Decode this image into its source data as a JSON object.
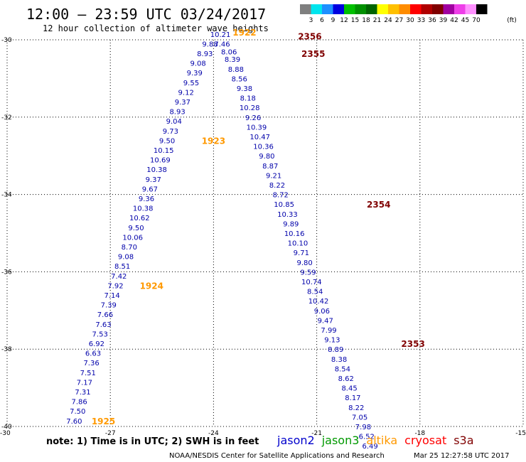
{
  "title": "12:00 – 23:59 UTC 03/24/2017",
  "subtitle": "12 hour collection of altimeter wave heights",
  "footer_note": "note: 1) Time is in UTC; 2) SWH is in feet",
  "footer_credit": "NOAA/NESDIS Center for Satellite Applications and Research",
  "footer_timestamp": "Mar 25 12:27:58 UTC 2017",
  "legend": {
    "unit": "(ft)",
    "bins": [
      {
        "label": "3",
        "color": "#7f7f7f"
      },
      {
        "label": "6",
        "color": "#00e5ee"
      },
      {
        "label": "9",
        "color": "#1e90ff"
      },
      {
        "label": "12",
        "color": "#0000e0"
      },
      {
        "label": "15",
        "color": "#00c000"
      },
      {
        "label": "18",
        "color": "#009000"
      },
      {
        "label": "21",
        "color": "#006400"
      },
      {
        "label": "24",
        "color": "#ffff00"
      },
      {
        "label": "27",
        "color": "#ffc000"
      },
      {
        "label": "30",
        "color": "#ff8c00"
      },
      {
        "label": "33",
        "color": "#ff0000"
      },
      {
        "label": "36",
        "color": "#b00000"
      },
      {
        "label": "39",
        "color": "#800000"
      },
      {
        "label": "42",
        "color": "#a000a0"
      },
      {
        "label": "45",
        "color": "#ee3ee8"
      },
      {
        "label": "70",
        "color": "#ff90ff"
      },
      {
        "label": "",
        "color": "#000000"
      }
    ]
  },
  "satellites": [
    {
      "name": "jason2",
      "color": "#0000cc"
    },
    {
      "name": "jason3",
      "color": "#009900"
    },
    {
      "name": "altika",
      "color": "#ff9900"
    },
    {
      "name": "cryosat",
      "color": "#ff0000"
    },
    {
      "name": "s3a",
      "color": "#800000"
    }
  ],
  "chart_data": {
    "type": "scatter",
    "xlim": [
      -30,
      -15
    ],
    "ylim": [
      -40,
      -30
    ],
    "xticks": [
      -30,
      -27,
      -24,
      -21,
      -18,
      -15
    ],
    "yticks": [
      -30,
      -32,
      -34,
      -36,
      -38,
      -40
    ],
    "grid": true,
    "series": [
      {
        "name": "altika",
        "text_color": "#0000aa",
        "points": [
          {
            "x": -23.8,
            "y": -29.85,
            "label": "10.21"
          },
          {
            "x": -24.1,
            "y": -30.1,
            "label": "9.88"
          },
          {
            "x": -24.25,
            "y": -30.35,
            "label": "8.93"
          },
          {
            "x": -24.45,
            "y": -30.6,
            "label": "9.08"
          },
          {
            "x": -24.55,
            "y": -30.85,
            "label": "9.39"
          },
          {
            "x": -24.65,
            "y": -31.1,
            "label": "9.55"
          },
          {
            "x": -24.8,
            "y": -31.35,
            "label": "9.12"
          },
          {
            "x": -24.9,
            "y": -31.6,
            "label": "9.37"
          },
          {
            "x": -25.05,
            "y": -31.85,
            "label": "8.93"
          },
          {
            "x": -25.15,
            "y": -32.1,
            "label": "9.04"
          },
          {
            "x": -25.25,
            "y": -32.35,
            "label": "9.73"
          },
          {
            "x": -25.35,
            "y": -32.6,
            "label": "9.50"
          },
          {
            "x": -25.45,
            "y": -32.85,
            "label": "10.15"
          },
          {
            "x": -25.55,
            "y": -33.1,
            "label": "10.69"
          },
          {
            "x": -25.65,
            "y": -33.35,
            "label": "10.38"
          },
          {
            "x": -25.75,
            "y": -33.6,
            "label": "9.37"
          },
          {
            "x": -25.85,
            "y": -33.85,
            "label": "9.67"
          },
          {
            "x": -25.95,
            "y": -34.1,
            "label": "9.36"
          },
          {
            "x": -26.05,
            "y": -34.35,
            "label": "10.38"
          },
          {
            "x": -26.15,
            "y": -34.6,
            "label": "10.62"
          },
          {
            "x": -26.25,
            "y": -34.85,
            "label": "9.50"
          },
          {
            "x": -26.35,
            "y": -35.1,
            "label": "10.06"
          },
          {
            "x": -26.45,
            "y": -35.35,
            "label": "8.70"
          },
          {
            "x": -26.55,
            "y": -35.6,
            "label": "9.08"
          },
          {
            "x": -26.65,
            "y": -35.85,
            "label": "8.51"
          },
          {
            "x": -26.75,
            "y": -36.1,
            "label": "7.42"
          },
          {
            "x": -26.85,
            "y": -36.35,
            "label": "7.92"
          },
          {
            "x": -26.95,
            "y": -36.6,
            "label": "7.14"
          },
          {
            "x": -27.05,
            "y": -36.85,
            "label": "7.39"
          },
          {
            "x": -27.15,
            "y": -37.1,
            "label": "7.66"
          },
          {
            "x": -27.2,
            "y": -37.35,
            "label": "7.63"
          },
          {
            "x": -27.3,
            "y": -37.6,
            "label": "7.53"
          },
          {
            "x": -27.4,
            "y": -37.85,
            "label": "6.92"
          },
          {
            "x": -27.5,
            "y": -38.1,
            "label": "6.63"
          },
          {
            "x": -27.55,
            "y": -38.35,
            "label": "7.36"
          },
          {
            "x": -27.65,
            "y": -38.6,
            "label": "7.51"
          },
          {
            "x": -27.75,
            "y": -38.85,
            "label": "7.17"
          },
          {
            "x": -27.8,
            "y": -39.1,
            "label": "7.31"
          },
          {
            "x": -27.9,
            "y": -39.35,
            "label": "7.86"
          },
          {
            "x": -27.95,
            "y": -39.6,
            "label": "7.50"
          },
          {
            "x": -28.05,
            "y": -39.85,
            "label": "7.60"
          }
        ]
      },
      {
        "name": "s3a",
        "text_color": "#0000aa",
        "points": [
          {
            "x": -23.75,
            "y": -30.1,
            "label": "7.46"
          },
          {
            "x": -23.55,
            "y": -30.3,
            "label": "8.06"
          },
          {
            "x": -23.45,
            "y": -30.5,
            "label": "8.39"
          },
          {
            "x": -23.35,
            "y": -30.75,
            "label": "8.88"
          },
          {
            "x": -23.25,
            "y": -31.0,
            "label": "8.56"
          },
          {
            "x": -23.1,
            "y": -31.25,
            "label": "9.38"
          },
          {
            "x": -23.0,
            "y": -31.5,
            "label": "8.18"
          },
          {
            "x": -22.95,
            "y": -31.75,
            "label": "10.28"
          },
          {
            "x": -22.85,
            "y": -32.0,
            "label": "9.26"
          },
          {
            "x": -22.75,
            "y": -32.25,
            "label": "10.39"
          },
          {
            "x": -22.65,
            "y": -32.5,
            "label": "10.47"
          },
          {
            "x": -22.55,
            "y": -32.75,
            "label": "10.36"
          },
          {
            "x": -22.45,
            "y": -33.0,
            "label": "9.80"
          },
          {
            "x": -22.35,
            "y": -33.25,
            "label": "8.87"
          },
          {
            "x": -22.25,
            "y": -33.5,
            "label": "9.21"
          },
          {
            "x": -22.15,
            "y": -33.75,
            "label": "8.22"
          },
          {
            "x": -22.05,
            "y": -34.0,
            "label": "8.72"
          },
          {
            "x": -21.95,
            "y": -34.25,
            "label": "10.85"
          },
          {
            "x": -21.85,
            "y": -34.5,
            "label": "10.33"
          },
          {
            "x": -21.75,
            "y": -34.75,
            "label": "9.89"
          },
          {
            "x": -21.65,
            "y": -35.0,
            "label": "10.16"
          },
          {
            "x": -21.55,
            "y": -35.25,
            "label": "10.10"
          },
          {
            "x": -21.45,
            "y": -35.5,
            "label": "9.71"
          },
          {
            "x": -21.35,
            "y": -35.75,
            "label": "9.80"
          },
          {
            "x": -21.25,
            "y": -36.0,
            "label": "9.59"
          },
          {
            "x": -21.15,
            "y": -36.25,
            "label": "10.74"
          },
          {
            "x": -21.05,
            "y": -36.5,
            "label": "8.54"
          },
          {
            "x": -20.95,
            "y": -36.75,
            "label": "10.42"
          },
          {
            "x": -20.85,
            "y": -37.0,
            "label": "9.06"
          },
          {
            "x": -20.75,
            "y": -37.25,
            "label": "9.47"
          },
          {
            "x": -20.65,
            "y": -37.5,
            "label": "7.99"
          },
          {
            "x": -20.55,
            "y": -37.75,
            "label": "9.13"
          },
          {
            "x": -20.45,
            "y": -38.0,
            "label": "8.89"
          },
          {
            "x": -20.35,
            "y": -38.25,
            "label": "8.38"
          },
          {
            "x": -20.25,
            "y": -38.5,
            "label": "8.54"
          },
          {
            "x": -20.15,
            "y": -38.75,
            "label": "8.62"
          },
          {
            "x": -20.05,
            "y": -39.0,
            "label": "8.45"
          },
          {
            "x": -19.95,
            "y": -39.25,
            "label": "8.17"
          },
          {
            "x": -19.85,
            "y": -39.5,
            "label": "8.22"
          },
          {
            "x": -19.75,
            "y": -39.75,
            "label": "7.05"
          },
          {
            "x": -19.65,
            "y": -40.0,
            "label": "7.98"
          },
          {
            "x": -19.55,
            "y": -40.25,
            "label": "6.52"
          },
          {
            "x": -19.45,
            "y": -40.5,
            "label": "6.49"
          }
        ]
      }
    ],
    "time_labels": [
      {
        "x": -23.1,
        "y": -29.8,
        "text": "1922",
        "color": "#ff9900"
      },
      {
        "x": -24.0,
        "y": -32.6,
        "text": "1923",
        "color": "#ff9900"
      },
      {
        "x": -25.8,
        "y": -36.35,
        "text": "1924",
        "color": "#ff9900"
      },
      {
        "x": -27.2,
        "y": -39.85,
        "text": "1925",
        "color": "#ff9900"
      },
      {
        "x": -21.2,
        "y": -29.9,
        "text": "2356",
        "color": "#800000"
      },
      {
        "x": -21.1,
        "y": -30.35,
        "text": "2355",
        "color": "#800000"
      },
      {
        "x": -19.2,
        "y": -34.25,
        "text": "2354",
        "color": "#800000"
      },
      {
        "x": -18.2,
        "y": -37.85,
        "text": "2353",
        "color": "#800000"
      }
    ]
  }
}
